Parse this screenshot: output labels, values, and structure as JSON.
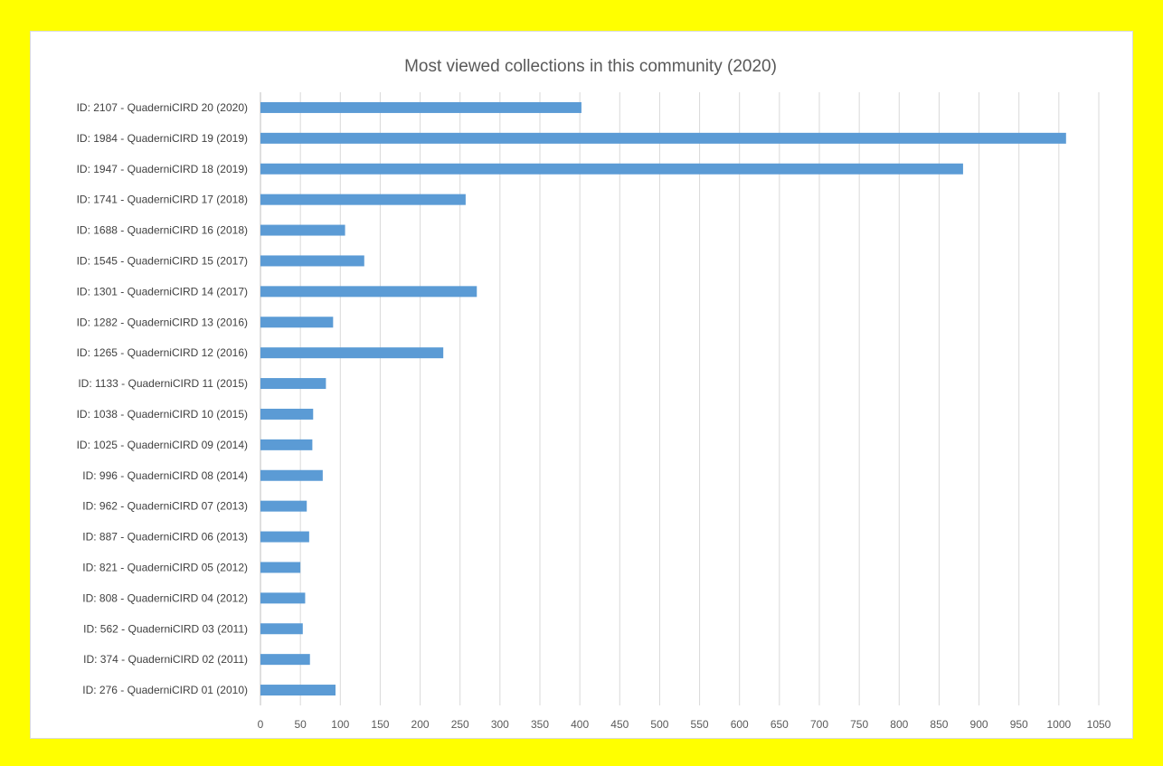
{
  "chart_data": {
    "type": "bar",
    "orientation": "horizontal",
    "title": "Most viewed collections in this community (2020)",
    "xlabel": "",
    "ylabel": "",
    "xlim": [
      0,
      1050
    ],
    "x_ticks": [
      0,
      50,
      100,
      150,
      200,
      250,
      300,
      350,
      400,
      450,
      500,
      550,
      600,
      650,
      700,
      750,
      800,
      850,
      900,
      950,
      1000,
      1050
    ],
    "grid": "vertical",
    "bar_color": "#5b9bd5",
    "categories": [
      "ID: 2107 - QuaderniCIRD 20 (2020)",
      "ID: 1984 - QuaderniCIRD 19 (2019)",
      "ID: 1947 - QuaderniCIRD 18 (2019)",
      "ID: 1741 - QuaderniCIRD 17 (2018)",
      "ID: 1688 - QuaderniCIRD 16 (2018)",
      "ID: 1545 - QuaderniCIRD 15 (2017)",
      "ID: 1301 - QuaderniCIRD 14 (2017)",
      "ID: 1282 - QuaderniCIRD 13 (2016)",
      "ID: 1265 - QuaderniCIRD 12 (2016)",
      "ID: 1133 - QuaderniCIRD 11 (2015)",
      "ID: 1038 - QuaderniCIRD 10 (2015)",
      "ID: 1025 - QuaderniCIRD 09 (2014)",
      "ID: 996 - QuaderniCIRD 08 (2014)",
      "ID: 962 - QuaderniCIRD 07 (2013)",
      "ID: 887 - QuaderniCIRD 06 (2013)",
      "ID: 821 - QuaderniCIRD 05 (2012)",
      "ID: 808 - QuaderniCIRD 04 (2012)",
      "ID: 562 - QuaderniCIRD 03 (2011)",
      "ID: 374 - QuaderniCIRD 02 (2011)",
      "ID: 276 - QuaderniCIRD 01 (2010)"
    ],
    "values": [
      402,
      1009,
      880,
      257,
      106,
      130,
      271,
      91,
      229,
      82,
      66,
      65,
      78,
      58,
      61,
      50,
      56,
      53,
      62,
      94
    ]
  }
}
